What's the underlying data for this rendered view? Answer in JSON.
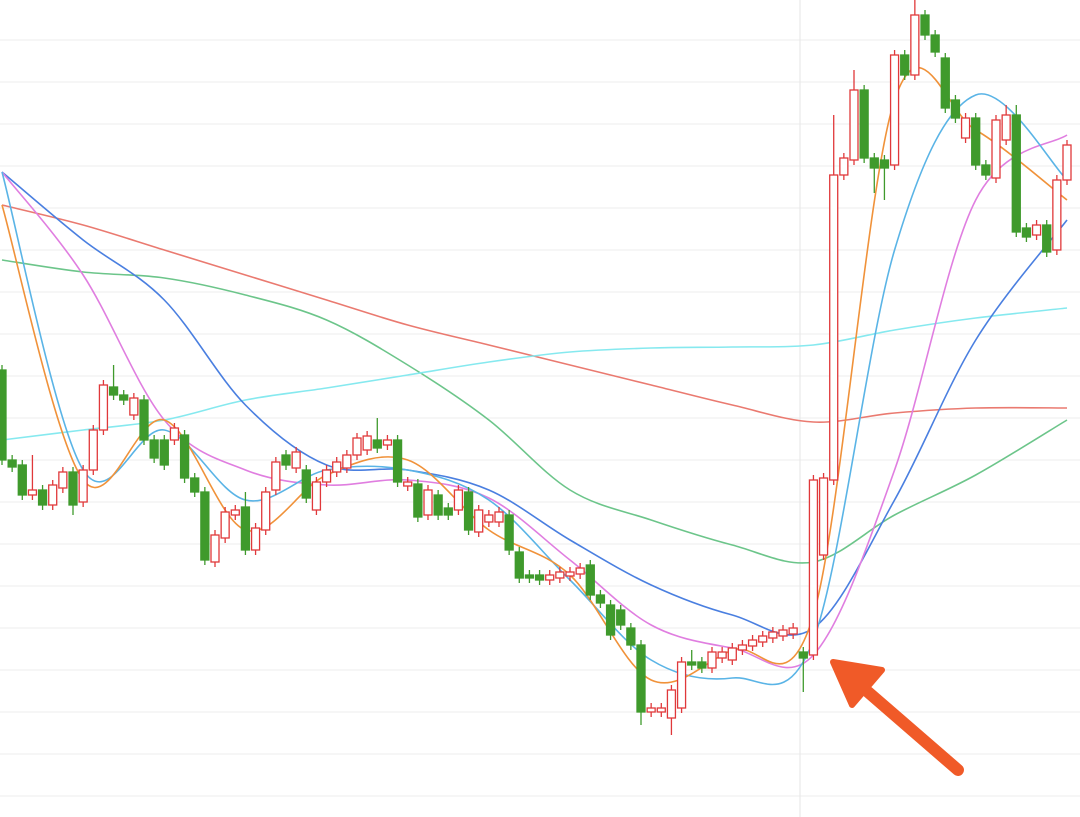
{
  "chart_data": {
    "type": "candlestick",
    "ylim": [
      0,
      817
    ],
    "xlim": [
      0,
      105
    ],
    "yticks": [
      21,
      63,
      105,
      147,
      189,
      231,
      273,
      315,
      357,
      399,
      441,
      483,
      525,
      567,
      609,
      651,
      693,
      735,
      777
    ],
    "grid": true,
    "up_color": "#e0383a",
    "down_color": "#3f9a2c",
    "open": [
      447,
      357,
      352,
      322,
      327,
      312,
      329,
      345,
      315,
      347,
      387,
      430,
      422,
      402,
      417,
      377,
      377,
      377,
      382,
      339,
      325,
      255,
      279,
      302,
      310,
      267,
      287,
      327,
      362,
      349,
      347,
      307,
      335,
      345,
      349,
      362,
      367,
      377,
      372,
      377,
      331,
      333,
      302,
      322,
      309,
      307,
      325,
      285,
      295,
      295,
      302,
      265,
      242,
      242,
      237,
      239,
      241,
      243,
      252,
      222,
      212,
      207,
      189,
      172,
      105,
      105,
      99,
      109,
      155,
      155,
      149,
      159,
      157,
      167,
      171,
      175,
      179,
      181,
      183,
      165,
      162,
      262,
      337,
      642,
      657,
      727,
      659,
      657,
      652,
      762,
      742,
      802,
      782,
      759,
      717,
      679,
      699,
      652,
      639,
      677,
      702,
      589,
      582,
      592,
      567,
      637
    ],
    "high": [
      452,
      362,
      357,
      362,
      332,
      337,
      350,
      350,
      352,
      392,
      437,
      452,
      427,
      424,
      422,
      382,
      382,
      394,
      387,
      344,
      330,
      287,
      310,
      312,
      325,
      294,
      330,
      360,
      367,
      370,
      352,
      340,
      352,
      360,
      367,
      384,
      386,
      399,
      382,
      382,
      340,
      338,
      332,
      327,
      314,
      332,
      330,
      312,
      307,
      310,
      307,
      270,
      247,
      247,
      247,
      250,
      250,
      254,
      257,
      227,
      217,
      212,
      194,
      177,
      114,
      114,
      132,
      160,
      167,
      160,
      170,
      170,
      174,
      177,
      182,
      186,
      190,
      192,
      194,
      170,
      342,
      344,
      702,
      664,
      747,
      732,
      664,
      662,
      767,
      767,
      817,
      807,
      787,
      764,
      722,
      704,
      704,
      657,
      702,
      712,
      712,
      594,
      597,
      597,
      642,
      677
    ],
    "low": [
      352,
      345,
      317,
      317,
      307,
      307,
      324,
      302,
      310,
      342,
      382,
      417,
      412,
      397,
      372,
      354,
      347,
      372,
      334,
      320,
      252,
      250,
      274,
      297,
      262,
      262,
      282,
      322,
      347,
      344,
      314,
      302,
      330,
      340,
      344,
      357,
      362,
      364,
      367,
      330,
      326,
      295,
      297,
      297,
      297,
      302,
      282,
      280,
      290,
      290,
      262,
      234,
      234,
      232,
      232,
      234,
      236,
      238,
      217,
      209,
      177,
      187,
      167,
      92,
      100,
      100,
      82,
      104,
      147,
      144,
      144,
      154,
      152,
      162,
      166,
      170,
      174,
      176,
      178,
      125,
      157,
      257,
      332,
      637,
      652,
      654,
      624,
      617,
      647,
      737,
      737,
      777,
      760,
      704,
      694,
      674,
      647,
      637,
      634,
      672,
      580,
      575,
      577,
      560,
      562,
      632
    ],
    "close": [
      357,
      350,
      322,
      327,
      312,
      332,
      345,
      312,
      347,
      387,
      432,
      422,
      417,
      419,
      377,
      359,
      352,
      389,
      339,
      325,
      257,
      282,
      305,
      307,
      267,
      289,
      325,
      355,
      352,
      365,
      319,
      335,
      347,
      355,
      362,
      379,
      381,
      369,
      377,
      335,
      335,
      300,
      327,
      302,
      302,
      327,
      287,
      307,
      302,
      305,
      267,
      239,
      239,
      237,
      242,
      245,
      245,
      249,
      222,
      214,
      182,
      192,
      172,
      105,
      109,
      109,
      127,
      155,
      152,
      149,
      165,
      165,
      169,
      172,
      177,
      181,
      185,
      187,
      189,
      159,
      337,
      339,
      642,
      659,
      727,
      659,
      649,
      649,
      762,
      742,
      802,
      782,
      765,
      709,
      699,
      699,
      652,
      642,
      697,
      702,
      585,
      580,
      592,
      565,
      637,
      672
    ],
    "lines": [
      {
        "color": "#ea7a70",
        "x": [
          0,
          8,
          16,
          24,
          32,
          40,
          48,
          56,
          64,
          72,
          80,
          88,
          96,
          105
        ],
        "values": [
          612,
          592,
          567,
          542,
          517,
          492,
          472,
          452,
          432,
          412,
          395,
          404,
          409,
          409
        ]
      },
      {
        "color": "#6cc58a",
        "x": [
          0,
          8,
          16,
          24,
          32,
          40,
          48,
          56,
          64,
          72,
          80,
          88,
          96,
          105
        ],
        "values": [
          557,
          545,
          539,
          522,
          497,
          452,
          397,
          327,
          297,
          272,
          255,
          302,
          342,
          397
        ]
      },
      {
        "color": "#86e9ef",
        "x": [
          0,
          8,
          16,
          24,
          32,
          40,
          48,
          56,
          64,
          72,
          80,
          88,
          96,
          105
        ],
        "values": [
          377,
          387,
          397,
          417,
          429,
          442,
          455,
          465,
          469,
          470,
          472,
          487,
          499,
          509
        ]
      },
      {
        "color": "#4a7fe0",
        "x": [
          0,
          8,
          16,
          24,
          32,
          40,
          48,
          56,
          64,
          72,
          80,
          88,
          96,
          105
        ],
        "values": [
          645,
          577,
          517,
          412,
          352,
          347,
          327,
          277,
          232,
          202,
          189,
          317,
          477,
          597
        ]
      },
      {
        "color": "#e07ee0",
        "x": [
          0,
          8,
          16,
          24,
          32,
          40,
          48,
          56,
          64,
          72,
          80,
          88,
          96,
          105
        ],
        "values": [
          645,
          542,
          397,
          347,
          332,
          337,
          319,
          257,
          192,
          169,
          162,
          347,
          617,
          682
        ]
      },
      {
        "color": "#5ab4e6",
        "x": [
          0,
          8,
          16,
          24,
          32,
          40,
          48,
          56,
          64,
          72,
          80,
          88,
          96,
          105
        ],
        "values": [
          645,
          347,
          387,
          317,
          347,
          347,
          317,
          237,
          157,
          139,
          177,
          567,
          722,
          637
        ]
      },
      {
        "color": "#f0923a",
        "x": [
          0,
          8,
          16,
          24,
          32,
          40,
          48,
          56,
          64,
          72,
          80,
          88,
          96,
          105
        ],
        "values": [
          612,
          337,
          397,
          287,
          342,
          357,
          287,
          242,
          137,
          167,
          202,
          717,
          687,
          617
        ]
      }
    ]
  }
}
